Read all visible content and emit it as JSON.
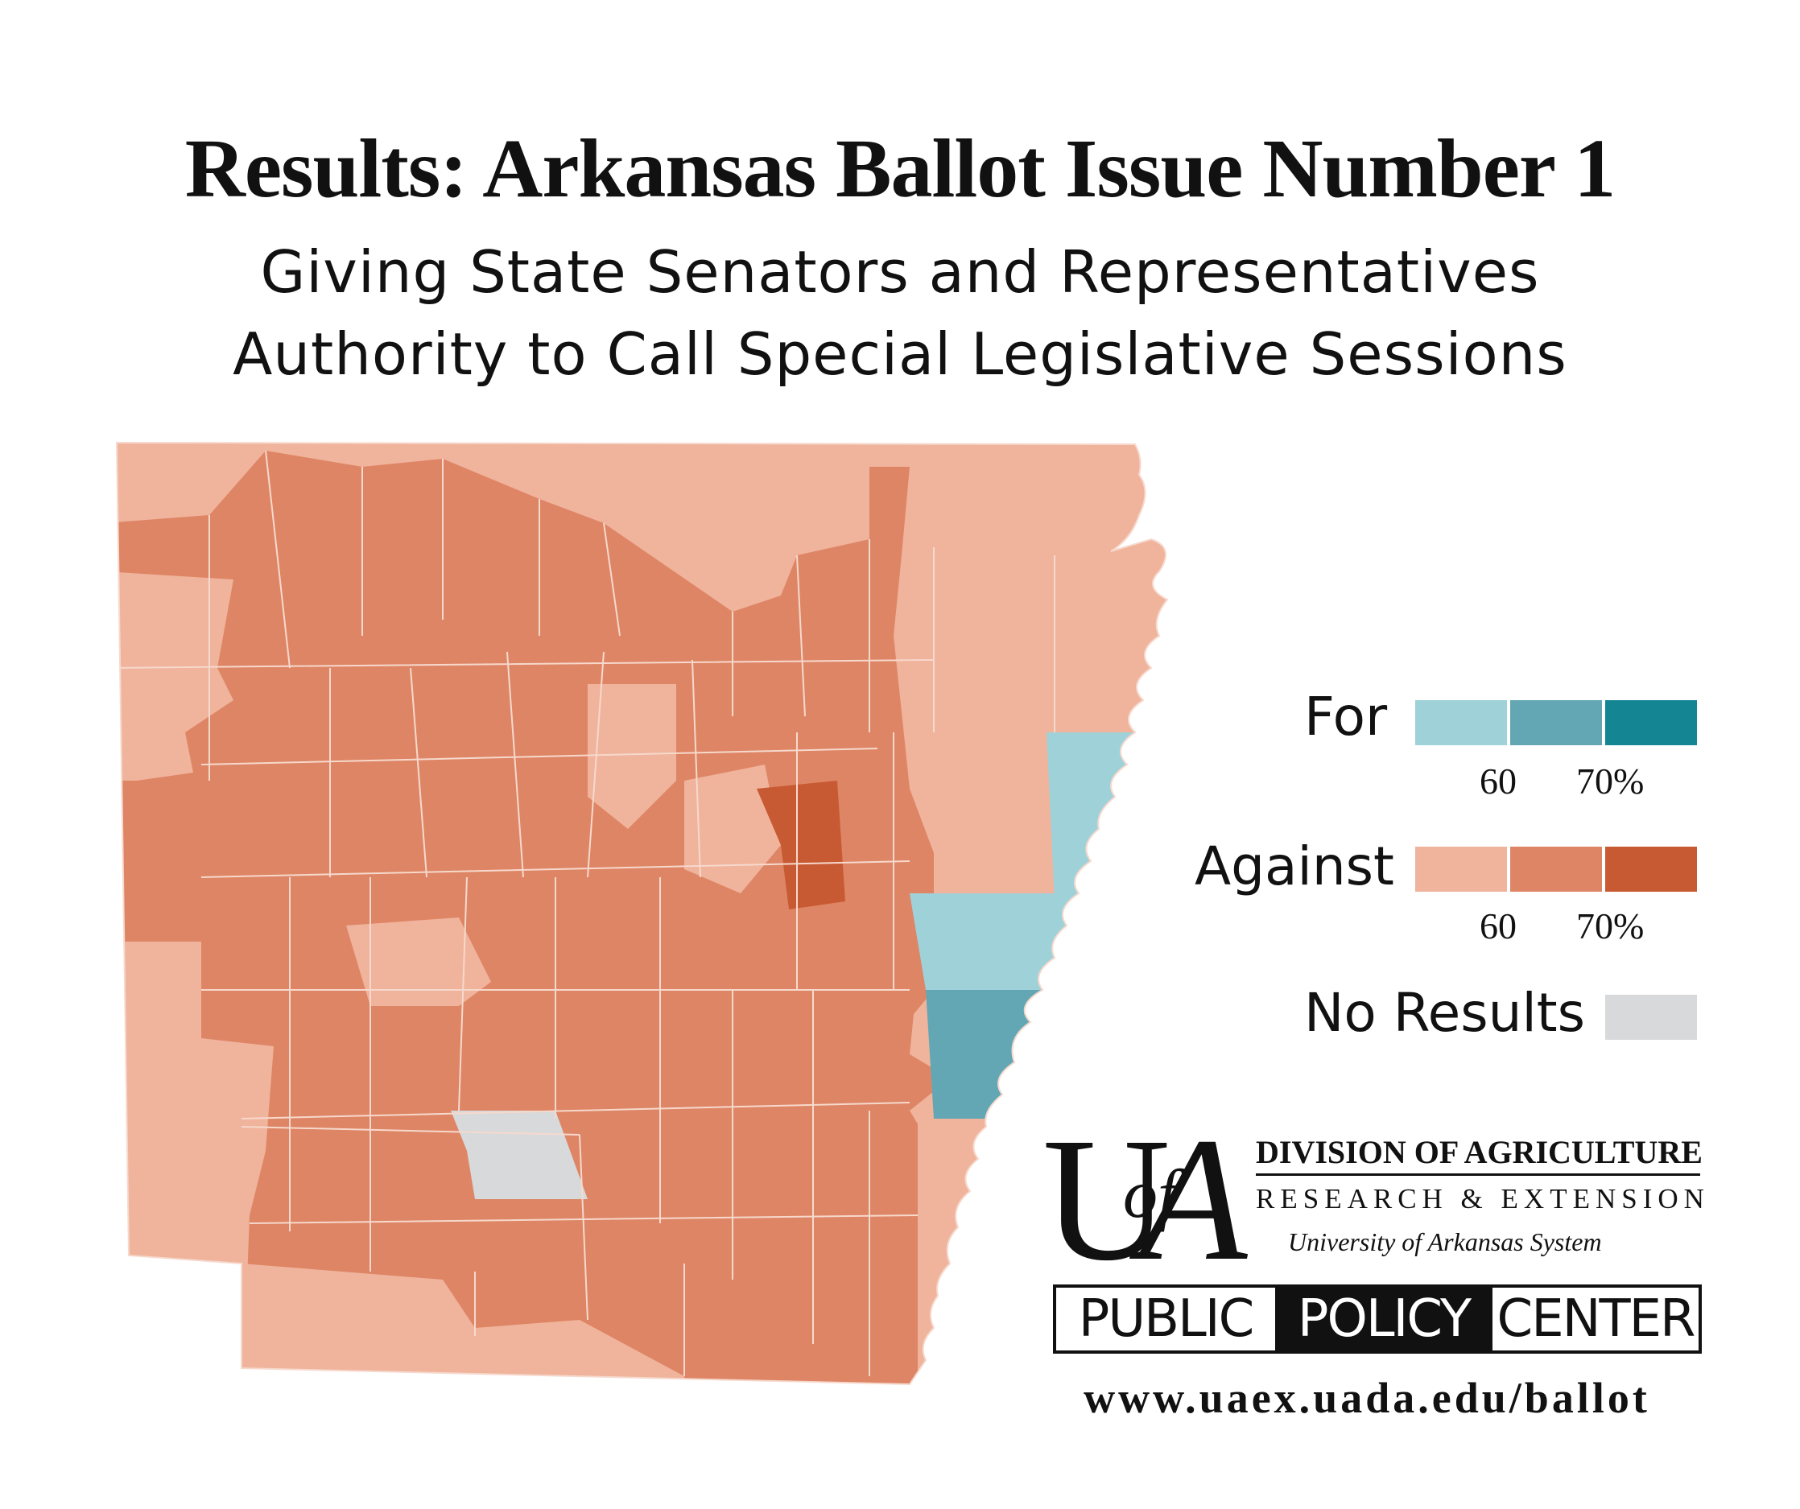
{
  "title": "Results: Arkansas Ballot Issue Number 1",
  "subtitle_line1": "Giving State Senators and Representatives",
  "subtitle_line2": "Authority to Call Special Legislative Sessions",
  "legend": {
    "for_label": "For",
    "against_label": "Against",
    "no_results_label": "No Results",
    "tick_60": "60",
    "tick_70": "70%",
    "colors": {
      "for": [
        "#9fd1d8",
        "#63a7b5",
        "#138593"
      ],
      "against": [
        "#f0b39c",
        "#de8565",
        "#c85a33"
      ],
      "no_results": "#d8d9db"
    }
  },
  "logo": {
    "division": "DIVISION OF AGRICULTURE",
    "research": "RESEARCH & EXTENSION",
    "system": "University of Arkansas System",
    "letters_u": "U",
    "letters_of": "of",
    "letters_a": "A"
  },
  "ppc": {
    "p1": "PUBLIC",
    "p2": "POLICY",
    "p3": "CENTER"
  },
  "url": "www.uaex.uada.edu/ballot",
  "map_regions": [
    {
      "id": "nw-outer",
      "cat": "against_low"
    },
    {
      "id": "north-tier",
      "cat": "against_low"
    },
    {
      "id": "north-central",
      "cat": "against_mid"
    },
    {
      "id": "central-mid",
      "cat": "against_mid"
    },
    {
      "id": "white-county",
      "cat": "against_high"
    },
    {
      "id": "ne-delta",
      "cat": "against_low"
    },
    {
      "id": "crittenden",
      "cat": "for_low"
    },
    {
      "id": "st-francis",
      "cat": "for_low"
    },
    {
      "id": "phillips",
      "cat": "for_mid"
    },
    {
      "id": "clark",
      "cat": "no_results"
    },
    {
      "id": "west-border",
      "cat": "against_low"
    },
    {
      "id": "south-border",
      "cat": "against_low"
    },
    {
      "id": "se-delta",
      "cat": "against_low"
    }
  ]
}
